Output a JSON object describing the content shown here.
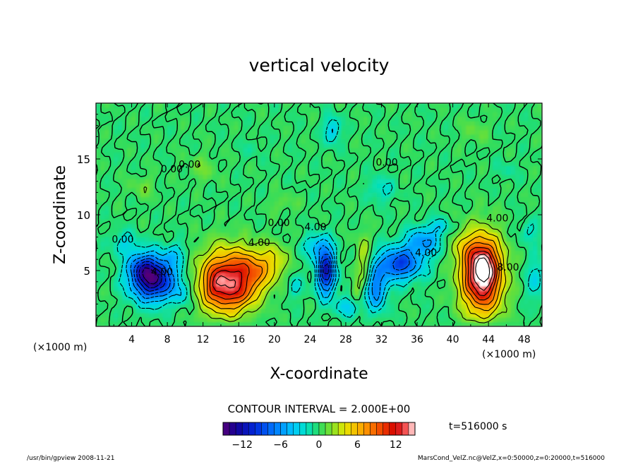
{
  "chart_data": {
    "type": "heatmap",
    "title": "vertical velocity",
    "xlabel": "X-coordinate",
    "ylabel": "Z-coordinate",
    "x_unit_left": "(×1000 m)",
    "x_unit_right": "(×1000 m)",
    "x_ticks": [
      4,
      8,
      12,
      16,
      20,
      24,
      28,
      32,
      36,
      40,
      44,
      48
    ],
    "y_ticks": [
      5,
      10,
      15
    ],
    "xlim": [
      0,
      50
    ],
    "ylim": [
      0,
      20
    ],
    "contour_interval_text": "CONTOUR INTERVAL = 2.000E+00",
    "time_label": "t=516000 s",
    "colorbar": {
      "range": [
        -15,
        15
      ],
      "tick_labels": [
        "−12",
        "−6",
        "0",
        "6",
        "12"
      ],
      "tick_values": [
        -12,
        -6,
        0,
        6,
        12
      ]
    },
    "contour_labels": [
      {
        "text": "0.00",
        "x": 3.0,
        "y": 7.5
      },
      {
        "text": "4.00",
        "x": 7.4,
        "y": 4.6
      },
      {
        "text": "0.00",
        "x": 8.5,
        "y": 13.8
      },
      {
        "text": "0.00",
        "x": 10.5,
        "y": 14.2
      },
      {
        "text": "4.00",
        "x": 18.3,
        "y": 7.2
      },
      {
        "text": "0.00",
        "x": 20.5,
        "y": 9.0
      },
      {
        "text": "4.00",
        "x": 24.6,
        "y": 8.6
      },
      {
        "text": "0.00",
        "x": 32.6,
        "y": 14.4
      },
      {
        "text": "4.00",
        "x": 37.0,
        "y": 6.3
      },
      {
        "text": "4.00",
        "x": 45.0,
        "y": 9.4
      },
      {
        "text": "8.00",
        "x": 46.2,
        "y": 5.0
      }
    ],
    "features": [
      {
        "kind": "downdraft",
        "x": 6.4,
        "z": 4.3,
        "peak": -14
      },
      {
        "kind": "updraft",
        "x": 14.6,
        "z": 4.0,
        "peak": 12
      },
      {
        "kind": "downdraft",
        "x": 25.8,
        "z": 5.0,
        "peak": -12
      },
      {
        "kind": "downdraft",
        "x": 33.0,
        "z": 5.8,
        "peak": -9
      },
      {
        "kind": "updraft",
        "x": 43.3,
        "z": 4.6,
        "peak": 16
      }
    ]
  },
  "footer": {
    "left": "/usr/bin/gpview   2008-11-21",
    "right": "MarsCond_VelZ.nc@VelZ,x=0:50000,z=0:20000,t=516000"
  }
}
